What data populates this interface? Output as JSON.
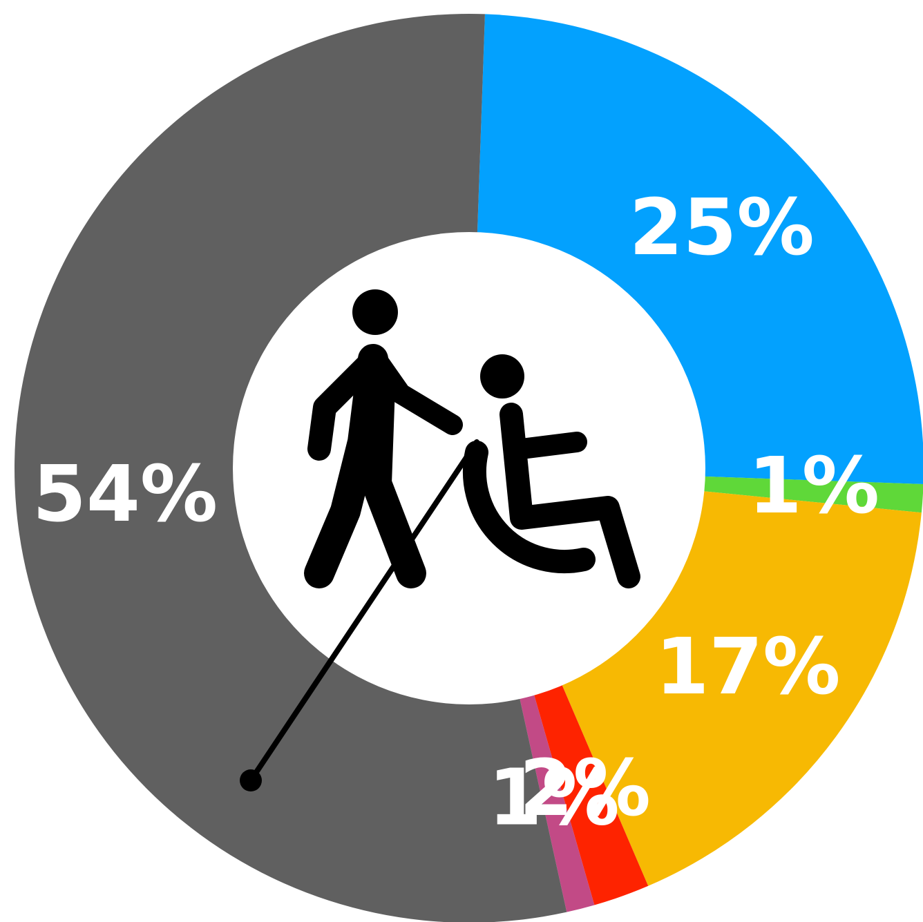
{
  "chart_data": {
    "type": "donut",
    "values": [
      25,
      1,
      17,
      2,
      1,
      54
    ],
    "value_labels": [
      "25%",
      "1%",
      "17%",
      "2%",
      "1%",
      "54%"
    ],
    "colors": [
      "#03a1fe",
      "#5fd839",
      "#f7b903",
      "#fe2300",
      "#c24a86",
      "#606060"
    ]
  }
}
